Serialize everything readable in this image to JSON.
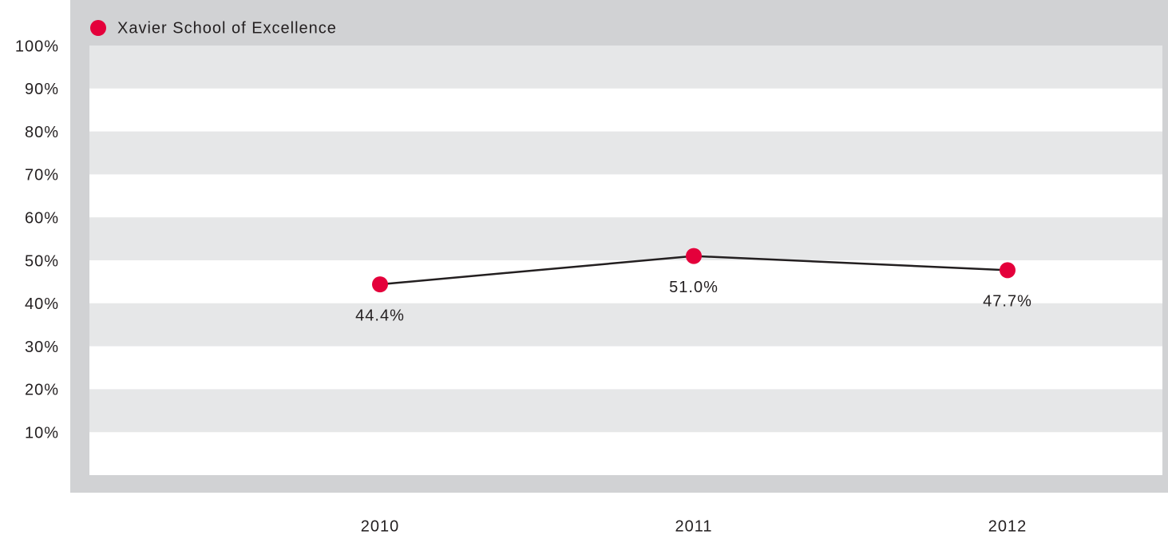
{
  "chart_data": {
    "type": "line",
    "categories": [
      "2010",
      "2011",
      "2012"
    ],
    "series": [
      {
        "name": "Xavier School of Excellence",
        "color": "#e4003b",
        "line_color": "#231f20",
        "values": [
          44.4,
          51.0,
          47.7
        ],
        "value_labels": [
          "44.4%",
          "51.0%",
          "47.7%"
        ]
      }
    ],
    "ylim": [
      0,
      100
    ],
    "yticks": [
      {
        "value": 10,
        "label": "10%"
      },
      {
        "value": 20,
        "label": "20%"
      },
      {
        "value": 30,
        "label": "30%"
      },
      {
        "value": 40,
        "label": "40%"
      },
      {
        "value": 50,
        "label": "50%"
      },
      {
        "value": 60,
        "label": "60%"
      },
      {
        "value": 70,
        "label": "70%"
      },
      {
        "value": 80,
        "label": "80%"
      },
      {
        "value": 90,
        "label": "90%"
      },
      {
        "value": 100,
        "label": "100%"
      }
    ],
    "grid": true,
    "legend": "top-left"
  }
}
